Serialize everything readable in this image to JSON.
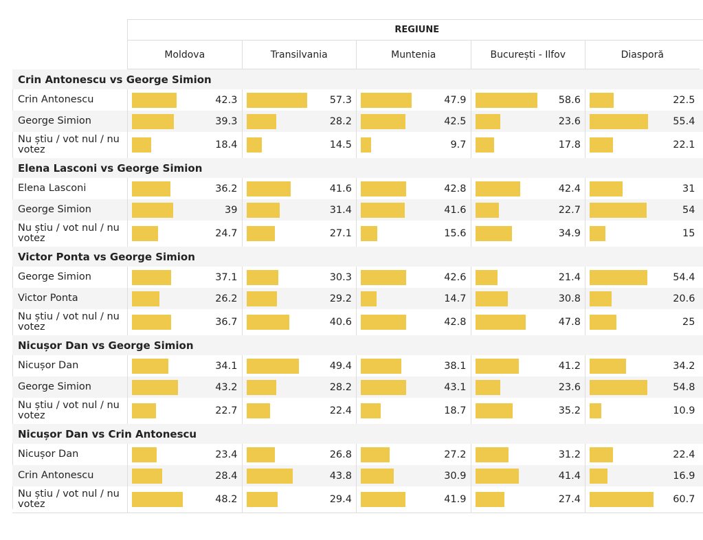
{
  "table": {
    "group_header": "REGIUNE",
    "columns": [
      "Moldova",
      "Transilvania",
      "Muntenia",
      "București - Ilfov",
      "Diasporă"
    ],
    "sections": [
      {
        "title": "Crin Antonescu vs George Simion",
        "rows": [
          {
            "label": "Crin Antonescu",
            "values": [
              42.3,
              57.3,
              47.9,
              58.6,
              22.5
            ]
          },
          {
            "label": "George Simion",
            "values": [
              39.3,
              28.2,
              42.5,
              23.6,
              55.4
            ]
          },
          {
            "label": "Nu știu / vot nul / nu votez",
            "values": [
              18.4,
              14.5,
              9.7,
              17.8,
              22.1
            ]
          }
        ]
      },
      {
        "title": "Elena Lasconi vs George Simion",
        "rows": [
          {
            "label": "Elena Lasconi",
            "values": [
              36.2,
              41.6,
              42.8,
              42.4,
              31
            ]
          },
          {
            "label": "George Simion",
            "values": [
              39,
              31.4,
              41.6,
              22.7,
              54
            ]
          },
          {
            "label": "Nu știu / vot nul / nu votez",
            "values": [
              24.7,
              27.1,
              15.6,
              34.9,
              15
            ]
          }
        ]
      },
      {
        "title": "Victor Ponta vs George Simion",
        "rows": [
          {
            "label": "George Simion",
            "values": [
              37.1,
              30.3,
              42.6,
              21.4,
              54.4
            ]
          },
          {
            "label": "Victor Ponta",
            "values": [
              26.2,
              29.2,
              14.7,
              30.8,
              20.6
            ]
          },
          {
            "label": "Nu știu / vot nul / nu votez",
            "values": [
              36.7,
              40.6,
              42.8,
              47.8,
              25
            ]
          }
        ]
      },
      {
        "title": "Nicușor Dan vs George Simion",
        "rows": [
          {
            "label": "Nicușor Dan",
            "values": [
              34.1,
              49.4,
              38.1,
              41.2,
              34.2
            ]
          },
          {
            "label": "George Simion",
            "values": [
              43.2,
              28.2,
              43.1,
              23.6,
              54.8
            ]
          },
          {
            "label": "Nu știu / vot nul / nu votez",
            "values": [
              22.7,
              22.4,
              18.7,
              35.2,
              10.9
            ]
          }
        ]
      },
      {
        "title": "Nicușor Dan vs Crin Antonescu",
        "rows": [
          {
            "label": "Nicușor Dan",
            "values": [
              23.4,
              26.8,
              27.2,
              31.2,
              22.4
            ]
          },
          {
            "label": "Crin Antonescu",
            "values": [
              28.4,
              43.8,
              30.9,
              41.4,
              16.9
            ]
          },
          {
            "label": "Nu știu / vot nul / nu votez",
            "values": [
              48.2,
              29.4,
              41.9,
              27.4,
              60.7
            ]
          }
        ]
      }
    ]
  }
}
